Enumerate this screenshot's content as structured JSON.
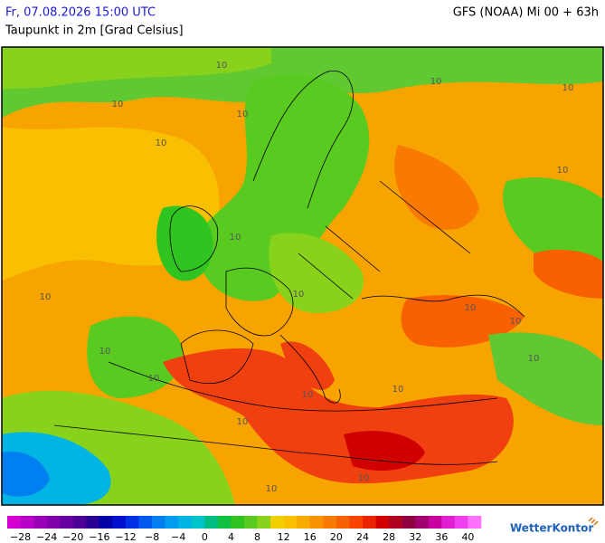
{
  "header": {
    "date": "Fr, 07.08.2026 15:00 UTC",
    "parameter": "Taupunkt in 2m [Grad Celsius]",
    "model": "GFS (NOAA) Mi 00 + 63h"
  },
  "map": {
    "contour_labels": [
      "10",
      "10",
      "10",
      "10",
      "10",
      "10",
      "10",
      "10",
      "10",
      "10",
      "10",
      "10",
      "10",
      "10",
      "10",
      "10",
      "10",
      "10",
      "10",
      "10"
    ]
  },
  "legend": {
    "start": -30,
    "step": 2,
    "colors": [
      "#d400d4",
      "#b800c8",
      "#9a00b8",
      "#8000aa",
      "#6600a0",
      "#4b0096",
      "#2a0094",
      "#0000a8",
      "#0010d0",
      "#0030e6",
      "#0058ee",
      "#0080f0",
      "#009cf0",
      "#00b4e4",
      "#00c4c8",
      "#00bc80",
      "#10c040",
      "#30c420",
      "#58ca20",
      "#88d21c",
      "#f0d000",
      "#f8c000",
      "#f8aa00",
      "#f89200",
      "#f87a00",
      "#f86000",
      "#f84400",
      "#e82400",
      "#d00000",
      "#b00020",
      "#900040",
      "#a00070",
      "#c800a0",
      "#e020d0",
      "#f040f0",
      "#ff70ff"
    ],
    "ticks": [
      {
        "value": -28,
        "label": "−28"
      },
      {
        "value": -24,
        "label": "−24"
      },
      {
        "value": -20,
        "label": "−20"
      },
      {
        "value": -16,
        "label": "−16"
      },
      {
        "value": -12,
        "label": "−12"
      },
      {
        "value": -8,
        "label": "−8"
      },
      {
        "value": -4,
        "label": "−4"
      },
      0,
      4,
      8,
      12,
      16,
      20,
      24,
      28,
      32,
      36,
      40
    ]
  },
  "brand": "WetterKontor"
}
